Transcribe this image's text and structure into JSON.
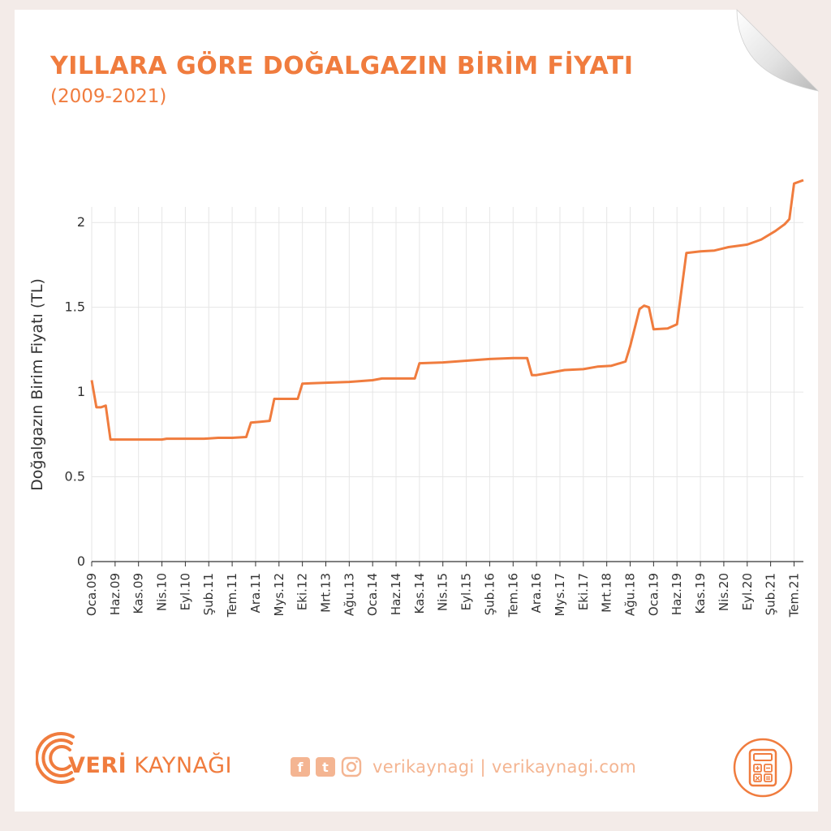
{
  "colors": {
    "accent": "#f07c3e",
    "accent_light": "#f4b592",
    "text_dark": "#333333",
    "grid": "#e6e6e6"
  },
  "header": {
    "title": "YILLARA GÖRE DOĞALGAZIN BİRİM FİYATI",
    "subtitle": "(2009-2021)"
  },
  "chart_data": {
    "type": "line",
    "title": "YILLARA GÖRE DOĞALGAZIN BİRİM FİYATI",
    "subtitle": "(2009-2021)",
    "xlabel": "",
    "ylabel": "Doğalgazın Birim Fiyatı (TL)",
    "ylim": [
      0,
      2.25
    ],
    "yticks": [
      0,
      0.5,
      1,
      1.5,
      2
    ],
    "ytick_labels": [
      "0",
      "0.5",
      "1",
      "1.5",
      "2"
    ],
    "xlim": [
      "2009-01",
      "2021-09"
    ],
    "xtick_labels": [
      "Oca.09",
      "Haz.09",
      "Kas.09",
      "Nis.10",
      "Eyl.10",
      "Şub.11",
      "Tem.11",
      "Ara.11",
      "Mys.12",
      "Eki.12",
      "Mrt.13",
      "Ağu.13",
      "Oca.14",
      "Haz.14",
      "Kas.14",
      "Nis.15",
      "Eyl.15",
      "Şub.16",
      "Tem.16",
      "Ara.16",
      "Mys.17",
      "Eki.17",
      "Mrt.18",
      "Ağu.18",
      "Oca.19",
      "Haz.19",
      "Kas.19",
      "Nis.20",
      "Eyl.20",
      "Şub.21",
      "Tem.21"
    ],
    "xtick_dates": [
      "2009-01",
      "2009-06",
      "2009-11",
      "2010-04",
      "2010-09",
      "2011-02",
      "2011-07",
      "2011-12",
      "2012-05",
      "2012-10",
      "2013-03",
      "2013-08",
      "2014-01",
      "2014-06",
      "2014-11",
      "2015-04",
      "2015-09",
      "2016-02",
      "2016-07",
      "2016-12",
      "2017-05",
      "2017-10",
      "2018-03",
      "2018-08",
      "2019-01",
      "2019-06",
      "2019-11",
      "2020-04",
      "2020-09",
      "2021-02",
      "2021-07"
    ],
    "grid": true,
    "series": [
      {
        "color": "#f07c3e",
        "points": [
          [
            "2009-01",
            1.07
          ],
          [
            "2009-02",
            0.91
          ],
          [
            "2009-03",
            0.91
          ],
          [
            "2009-04",
            0.92
          ],
          [
            "2009-05",
            0.72
          ],
          [
            "2009-08",
            0.72
          ],
          [
            "2009-12",
            0.72
          ],
          [
            "2010-04",
            0.72
          ],
          [
            "2010-05",
            0.725
          ],
          [
            "2010-09",
            0.725
          ],
          [
            "2011-01",
            0.725
          ],
          [
            "2011-04",
            0.73
          ],
          [
            "2011-07",
            0.73
          ],
          [
            "2011-10",
            0.735
          ],
          [
            "2011-11",
            0.82
          ],
          [
            "2012-01",
            0.825
          ],
          [
            "2012-03",
            0.83
          ],
          [
            "2012-04",
            0.96
          ],
          [
            "2012-06",
            0.96
          ],
          [
            "2012-09",
            0.96
          ],
          [
            "2012-10",
            1.05
          ],
          [
            "2013-03",
            1.055
          ],
          [
            "2013-08",
            1.06
          ],
          [
            "2014-01",
            1.07
          ],
          [
            "2014-03",
            1.08
          ],
          [
            "2014-10",
            1.08
          ],
          [
            "2014-11",
            1.17
          ],
          [
            "2015-04",
            1.175
          ],
          [
            "2015-09",
            1.185
          ],
          [
            "2016-02",
            1.195
          ],
          [
            "2016-07",
            1.2
          ],
          [
            "2016-10",
            1.2
          ],
          [
            "2016-11",
            1.1
          ],
          [
            "2016-12",
            1.1
          ],
          [
            "2017-03",
            1.115
          ],
          [
            "2017-06",
            1.13
          ],
          [
            "2017-10",
            1.135
          ],
          [
            "2018-01",
            1.15
          ],
          [
            "2018-04",
            1.155
          ],
          [
            "2018-07",
            1.18
          ],
          [
            "2018-08",
            1.27
          ],
          [
            "2018-10",
            1.49
          ],
          [
            "2018-11",
            1.51
          ],
          [
            "2018-12",
            1.5
          ],
          [
            "2019-01",
            1.37
          ],
          [
            "2019-04",
            1.375
          ],
          [
            "2019-06",
            1.4
          ],
          [
            "2019-08",
            1.82
          ],
          [
            "2019-11",
            1.83
          ],
          [
            "2020-02",
            1.835
          ],
          [
            "2020-05",
            1.855
          ],
          [
            "2020-09",
            1.87
          ],
          [
            "2020-12",
            1.9
          ],
          [
            "2021-03",
            1.95
          ],
          [
            "2021-05",
            1.99
          ],
          [
            "2021-06",
            2.02
          ],
          [
            "2021-07",
            2.23
          ],
          [
            "2021-09",
            2.25
          ]
        ]
      }
    ]
  },
  "footer": {
    "brand_strong": "VERİ",
    "brand_light": "KAYNAĞI",
    "facebook_glyph": "f",
    "twitter_glyph": "t",
    "handle": "verikaynagi | verikaynagi.com",
    "icons": [
      "facebook-icon",
      "twitter-icon",
      "instagram-icon",
      "calculator-icon"
    ]
  }
}
